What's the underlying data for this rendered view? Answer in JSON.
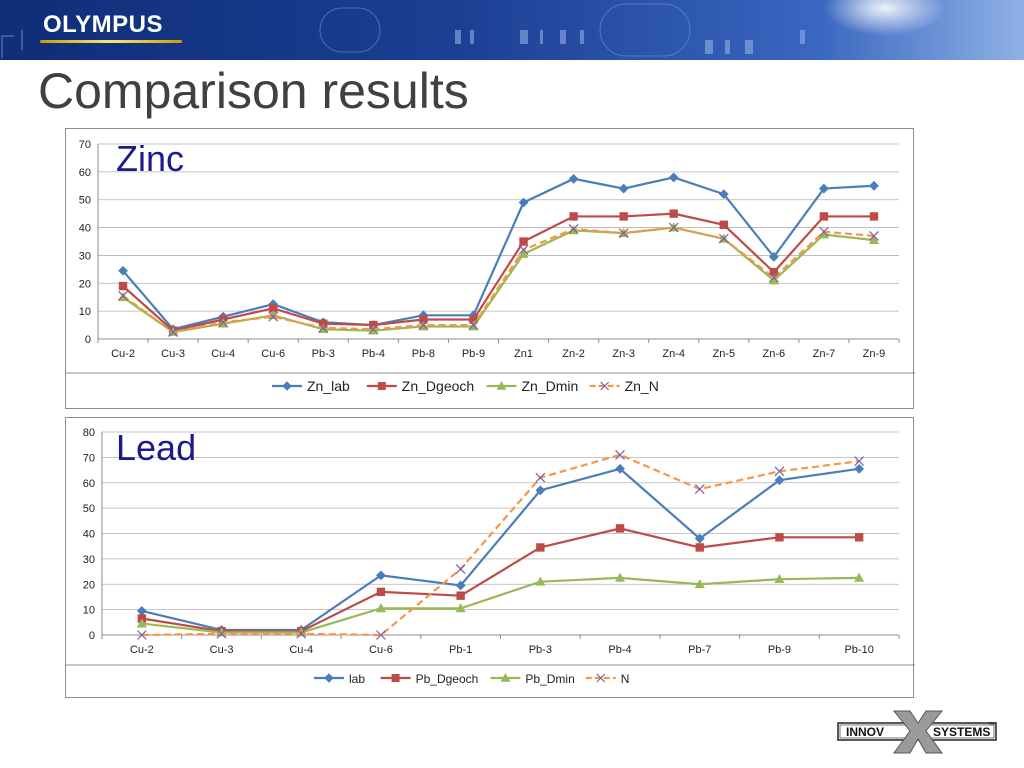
{
  "brand": {
    "logo_text": "OLYMPUS",
    "footer_logo": "INNOV-X SYSTEMS",
    "footer_logo_left": "INNOV",
    "footer_logo_x": "X",
    "footer_logo_right": "SYSTEMS",
    "footer_logo_tm": "™"
  },
  "page": {
    "title": "Comparison results"
  },
  "colors": {
    "blue": "#4a7ebb",
    "red": "#be4b48",
    "green": "#98b954",
    "orange": "#f79646",
    "cross": "#7f5fa3",
    "grid": "#b3b3b3",
    "banner": "#1f3f8f"
  },
  "chart_data": [
    {
      "type": "line",
      "title": "Zinc",
      "ylim": [
        0,
        70
      ],
      "yticks": [
        0,
        10,
        20,
        30,
        40,
        50,
        60,
        70
      ],
      "grid": true,
      "legend_position": "bottom",
      "categories": [
        "Cu-2",
        "Cu-3",
        "Cu-4",
        "Cu-6",
        "Pb-3",
        "Pb-4",
        "Pb-8",
        "Pb-9",
        "Zn1",
        "Zn-2",
        "Zn-3",
        "Zn-4",
        "Zn-5",
        "Zn-6",
        "Zn-7",
        "Zn-9"
      ],
      "series": [
        {
          "name": "Zn_lab",
          "color": "#4a7ebb",
          "marker": "diamond",
          "dash": false,
          "values": [
            24.5,
            3.5,
            8,
            12.5,
            6,
            5,
            8.5,
            8.5,
            49,
            57.5,
            54,
            58,
            52,
            29.5,
            54,
            55
          ]
        },
        {
          "name": "Zn_Dgeoch",
          "color": "#be4b48",
          "marker": "square",
          "dash": false,
          "values": [
            19,
            3,
            7,
            11,
            5.5,
            5,
            7,
            7,
            35,
            44,
            44,
            45,
            41,
            24,
            44,
            44
          ]
        },
        {
          "name": "Zn_Dmin",
          "color": "#98b954",
          "marker": "triangle",
          "dash": false,
          "values": [
            15,
            2.5,
            5.5,
            8.5,
            3.5,
            3,
            4.5,
            4.5,
            30.5,
            39,
            38,
            40,
            36,
            21,
            37.5,
            35.5
          ]
        },
        {
          "name": "Zn_N",
          "color": "#f79646",
          "marker": "x",
          "dash": true,
          "values": [
            15.5,
            2.5,
            6,
            8,
            4,
            3.5,
            5,
            5,
            32,
            39.5,
            38,
            40,
            36,
            22,
            38.5,
            37
          ]
        }
      ]
    },
    {
      "type": "line",
      "title": "Lead",
      "ylim": [
        0,
        80
      ],
      "yticks": [
        0,
        10,
        20,
        30,
        40,
        50,
        60,
        70,
        80
      ],
      "grid": true,
      "legend_position": "bottom",
      "categories": [
        "Cu-2",
        "Cu-3",
        "Cu-4",
        "Cu-6",
        "Pb-1",
        "Pb-3",
        "Pb-4",
        "Pb-7",
        "Pb-9",
        "Pb-10"
      ],
      "series": [
        {
          "name": "lab",
          "color": "#4a7ebb",
          "marker": "diamond",
          "dash": false,
          "values": [
            9.5,
            2,
            2,
            23.5,
            19.5,
            57,
            65.5,
            38,
            61,
            65.5
          ]
        },
        {
          "name": "Pb_Dgeoch",
          "color": "#be4b48",
          "marker": "square",
          "dash": false,
          "values": [
            6.5,
            1.5,
            1.5,
            17,
            15.5,
            34.5,
            42,
            34.5,
            38.5,
            38.5
          ]
        },
        {
          "name": "Pb_Dmin",
          "color": "#98b954",
          "marker": "triangle",
          "dash": false,
          "values": [
            4.5,
            1,
            1,
            10.5,
            10.5,
            21,
            22.5,
            20,
            22,
            22.5
          ]
        },
        {
          "name": "N",
          "color": "#f79646",
          "marker": "x",
          "dash": true,
          "values": [
            0,
            0.5,
            0.5,
            0,
            26,
            62,
            71,
            57.5,
            64.5,
            68.5
          ]
        }
      ]
    }
  ]
}
